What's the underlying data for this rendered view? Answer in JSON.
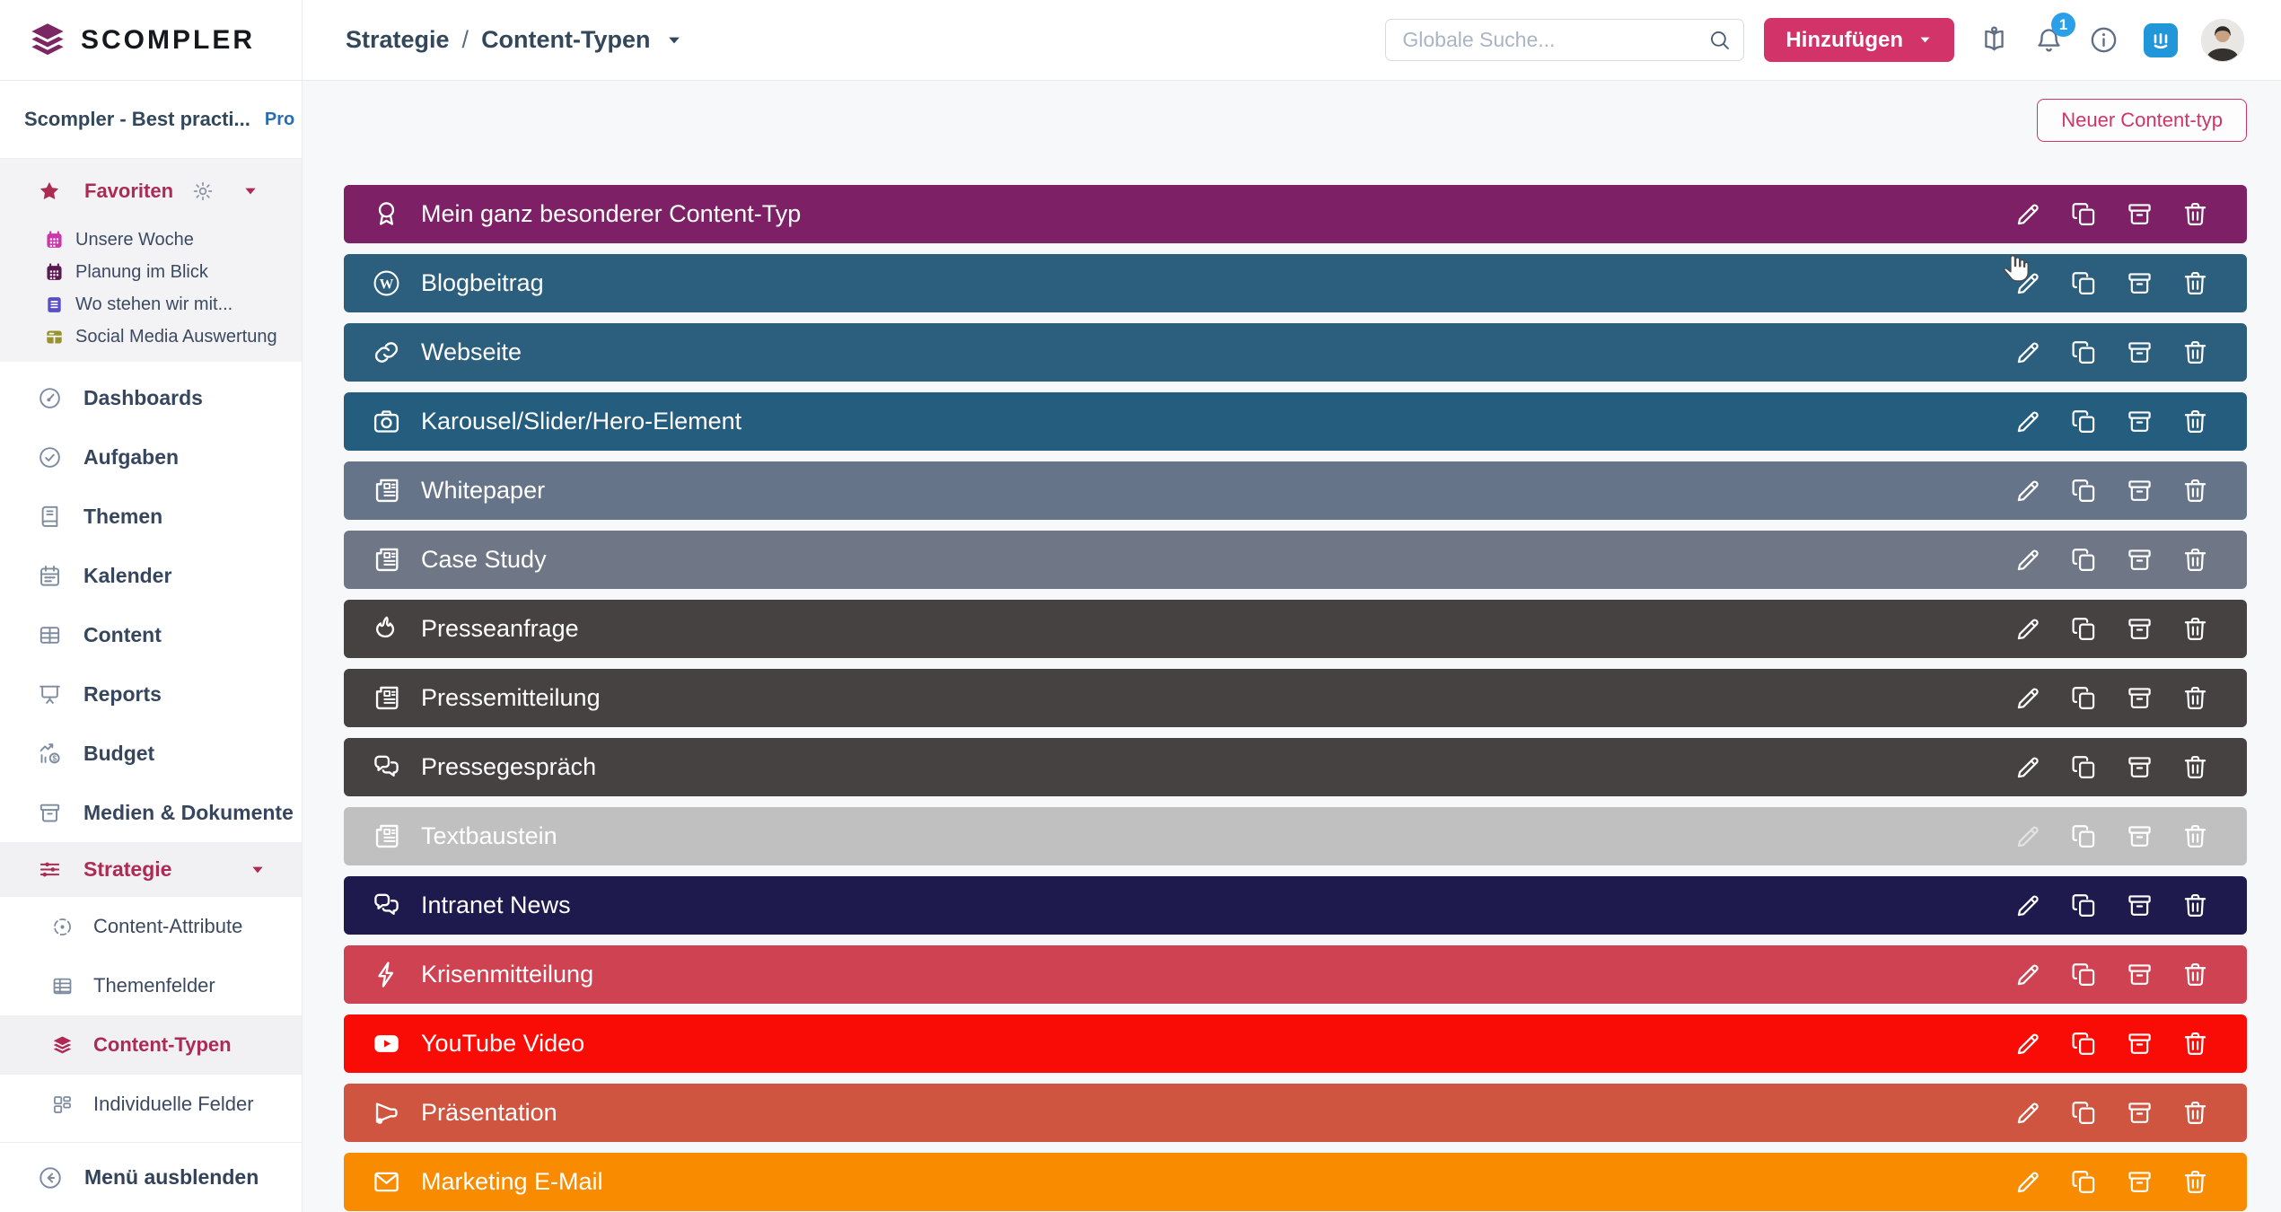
{
  "brand": {
    "name": "SCOMPLER"
  },
  "header": {
    "breadcrumb": {
      "section": "Strategie",
      "separator": "/",
      "page": "Content-Typen"
    },
    "search_placeholder": "Globale Suche...",
    "add_button": "Hinzufügen",
    "notification_count": "1"
  },
  "sidebar": {
    "project": {
      "name": "Scompler - Best practi...",
      "badge": "Pro"
    },
    "favorites": {
      "title": "Favoriten",
      "items": [
        {
          "label": "Unsere Woche",
          "icon": "calendar-filled",
          "color": "#cb37ab"
        },
        {
          "label": "Planung im Blick",
          "icon": "calendar-filled",
          "color": "#5d1a52"
        },
        {
          "label": "Wo stehen wir mit...",
          "icon": "book-filled",
          "color": "#584fc8"
        },
        {
          "label": "Social Media Auswertung",
          "icon": "grid-filled",
          "color": "#99922e"
        }
      ]
    },
    "nav": [
      {
        "label": "Dashboards",
        "icon": "gauge"
      },
      {
        "label": "Aufgaben",
        "icon": "check-circle"
      },
      {
        "label": "Themen",
        "icon": "book-outline"
      },
      {
        "label": "Kalender",
        "icon": "calendar-outline"
      },
      {
        "label": "Content",
        "icon": "table"
      },
      {
        "label": "Reports",
        "icon": "presentation"
      },
      {
        "label": "Budget",
        "icon": "chart-coin"
      },
      {
        "label": "Medien & Dokumente",
        "icon": "archive"
      }
    ],
    "strategy": {
      "label": "Strategie",
      "icon": "sliders"
    },
    "strategy_sub": [
      {
        "label": "Content-Attribute",
        "icon": "target",
        "active": false
      },
      {
        "label": "Themenfelder",
        "icon": "table-grid",
        "active": false
      },
      {
        "label": "Content-Typen",
        "icon": "layers",
        "active": true
      },
      {
        "label": "Individuelle Felder",
        "icon": "kanban",
        "active": false
      }
    ],
    "collapse_label": "Menü ausblenden"
  },
  "main": {
    "new_button": "Neuer Content-typ",
    "content_types": [
      {
        "label": "Mein ganz besonderer Content-Typ",
        "icon": "award",
        "color": "#7d2066",
        "disabled": false
      },
      {
        "label": "Blogbeitrag",
        "icon": "wordpress",
        "color": "#2c5e7d",
        "disabled": false
      },
      {
        "label": "Webseite",
        "icon": "link",
        "color": "#2c5e7d",
        "disabled": false
      },
      {
        "label": "Karousel/Slider/Hero-Element",
        "icon": "camera",
        "color": "#255d7f",
        "disabled": false
      },
      {
        "label": "Whitepaper",
        "icon": "newspaper",
        "color": "#66748a",
        "disabled": false
      },
      {
        "label": "Case Study",
        "icon": "newspaper",
        "color": "#6f7787",
        "disabled": false
      },
      {
        "label": "Presseanfrage",
        "icon": "flame",
        "color": "#454241",
        "disabled": false
      },
      {
        "label": "Pressemitteilung",
        "icon": "newspaper",
        "color": "#454241",
        "disabled": false
      },
      {
        "label": "Pressegespräch",
        "icon": "chat",
        "color": "#454241",
        "disabled": false
      },
      {
        "label": "Textbaustein",
        "icon": "newspaper",
        "color": "#c1c0c0",
        "disabled": true
      },
      {
        "label": "Intranet News",
        "icon": "chat",
        "color": "#1e1a4e",
        "disabled": false
      },
      {
        "label": "Krisenmitteilung",
        "icon": "lightning",
        "color": "#cf4251",
        "disabled": false
      },
      {
        "label": "YouTube Video",
        "icon": "youtube",
        "color": "#f90c06",
        "disabled": false
      },
      {
        "label": "Präsentation",
        "icon": "megaphone",
        "color": "#cf5540",
        "disabled": false
      },
      {
        "label": "Marketing E-Mail",
        "icon": "envelope",
        "color": "#f88b00",
        "disabled": false
      }
    ],
    "row_actions": [
      {
        "name": "edit",
        "icon": "pencil"
      },
      {
        "name": "duplicate",
        "icon": "copy"
      },
      {
        "name": "archive",
        "icon": "archive"
      },
      {
        "name": "delete",
        "icon": "trash"
      }
    ]
  },
  "colors": {
    "accent": "#ad2a52",
    "button_pink": "#d23368",
    "badge_blue": "#2aa0e9",
    "intercom_blue": "#2196d9"
  }
}
